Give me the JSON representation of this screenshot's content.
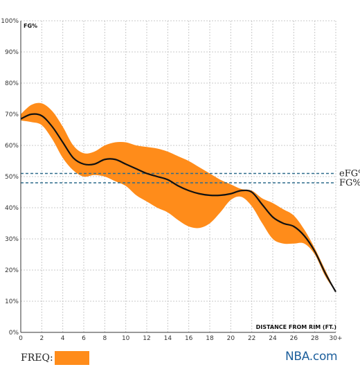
{
  "chart_data": {
    "type": "line",
    "ylabel": "FG%",
    "xlabel": "DISTANCE FROM RIM (FT.)",
    "x_ticks": [
      "0",
      "2",
      "4",
      "6",
      "8",
      "10",
      "12",
      "14",
      "16",
      "18",
      "20",
      "22",
      "24",
      "26",
      "28",
      "30+"
    ],
    "y_ticks": [
      "0%",
      "10%",
      "20%",
      "30%",
      "40%",
      "50%",
      "60%",
      "70%",
      "80%",
      "90%",
      "100%"
    ],
    "xlim": [
      0,
      30
    ],
    "ylim": [
      0,
      100
    ],
    "grid": true,
    "series": [
      {
        "name": "FG%",
        "color": "#111111",
        "x": [
          0,
          1,
          2,
          3,
          4,
          5,
          6,
          7,
          8,
          9,
          10,
          11,
          12,
          13,
          14,
          15,
          16,
          17,
          18,
          19,
          20,
          21,
          22,
          23,
          24,
          25,
          26,
          27,
          28,
          29,
          30
        ],
        "y": [
          68.5,
          70,
          69.5,
          66,
          61,
          56,
          54,
          54,
          55.5,
          55.5,
          54,
          52.5,
          51,
          50,
          49,
          47,
          45.5,
          44.5,
          44,
          44,
          44.5,
          45.5,
          45,
          41,
          37,
          35,
          34,
          31,
          26,
          19,
          13
        ]
      }
    ],
    "frequency_band": {
      "name": "FREQ:",
      "color": "#ff8c1a",
      "x": [
        0,
        1,
        2,
        3,
        4,
        5,
        6,
        7,
        8,
        9,
        10,
        11,
        12,
        13,
        14,
        15,
        16,
        17,
        18,
        19,
        20,
        21,
        22,
        23,
        24,
        25,
        26,
        27,
        28,
        29,
        30
      ],
      "upper": [
        70,
        73,
        73.5,
        71,
        66,
        60,
        57.5,
        58,
        60,
        61,
        61,
        60,
        59.5,
        59,
        58,
        56.5,
        55,
        53,
        51,
        49,
        47.5,
        46,
        45.5,
        43,
        41.5,
        39.5,
        37.5,
        33,
        27,
        20,
        13
      ],
      "lower": [
        68,
        67.5,
        66.5,
        62,
        56,
        52,
        50,
        50.5,
        50,
        48.5,
        47,
        44,
        42,
        40,
        38.5,
        36,
        34,
        33.5,
        35,
        38.5,
        42.5,
        43.5,
        40.5,
        35,
        30,
        28.5,
        28.5,
        28.5,
        25,
        18,
        13
      ]
    },
    "reference_lines": [
      {
        "label": "eFG%",
        "value": 51,
        "color": "#2d6b8c"
      },
      {
        "label": "FG%",
        "value": 48,
        "color": "#2d6b8c"
      }
    ]
  },
  "legend": {
    "freq_label": "FREQ:",
    "freq_color": "#ff8c1a"
  },
  "brand": {
    "text": "NBA.com",
    "color": "#1d5f9c"
  }
}
